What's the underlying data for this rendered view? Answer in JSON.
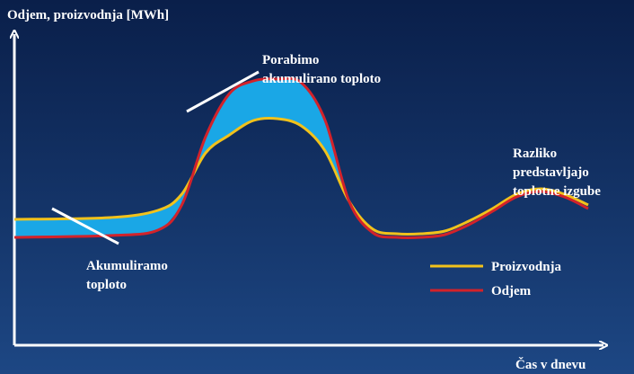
{
  "chart_data": {
    "type": "line",
    "ylabel": "Odjem, proizvodnja [MWh]",
    "xlabel": "Čas v dnevu",
    "x": [
      0,
      4,
      6,
      7,
      8,
      9,
      10,
      11,
      12,
      13,
      14,
      15,
      16,
      17,
      18,
      19,
      20,
      21,
      22,
      23,
      24
    ],
    "series": [
      {
        "name": "Proizvodnja",
        "color": "#f2c21b",
        "values": [
          7.0,
          7.1,
          7.5,
          8.4,
          10.7,
          11.7,
          12.5,
          12.6,
          12.2,
          10.8,
          8.0,
          6.45,
          6.2,
          6.2,
          6.35,
          6.9,
          7.6,
          8.4,
          8.7,
          8.4,
          7.8
        ]
      },
      {
        "name": "Odjem",
        "color": "#d3222a",
        "values": [
          6.0,
          6.1,
          6.4,
          7.8,
          11.6,
          14.0,
          14.7,
          14.8,
          14.6,
          12.5,
          8.0,
          6.25,
          6.0,
          6.0,
          6.15,
          6.7,
          7.45,
          8.25,
          8.55,
          8.25,
          7.6
        ]
      }
    ],
    "fill_color": "#1aa7e6",
    "legend": "bottom-right",
    "annotations": {
      "porabimo": [
        "Porabimo",
        "akumulirano toploto"
      ],
      "razliko": [
        "Razliko",
        "predstavljajo",
        "toplotne izgube"
      ],
      "akumuliramo": [
        "Akumuliramo",
        "toploto"
      ]
    },
    "grid": false
  }
}
